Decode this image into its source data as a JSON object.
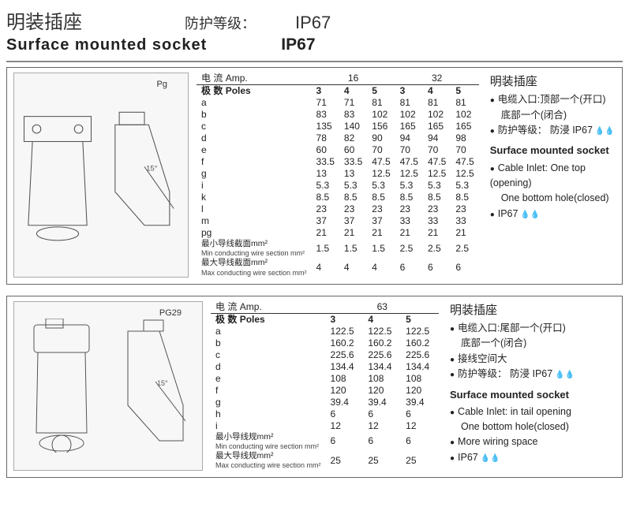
{
  "header": {
    "cnTitle": "明装插座",
    "cnProtectionLabel": "防护等级：",
    "cnIP": "IP67",
    "enTitle": "Surface mounted  socket",
    "enIP": "IP67"
  },
  "section1": {
    "ampLabelCn": "电 流",
    "ampLabelEn": "Amp.",
    "polesLabelCn": "极 数",
    "polesLabelEn": "Poles",
    "ampGroups": [
      "16",
      "32"
    ],
    "poles": [
      "3",
      "4",
      "5",
      "3",
      "4",
      "5"
    ],
    "rows": [
      {
        "l": "a",
        "v": [
          "71",
          "71",
          "81",
          "81",
          "81",
          "81"
        ]
      },
      {
        "l": "b",
        "v": [
          "83",
          "83",
          "102",
          "102",
          "102",
          "102"
        ]
      },
      {
        "l": "c",
        "v": [
          "135",
          "140",
          "156",
          "165",
          "165",
          "165"
        ]
      },
      {
        "l": "d",
        "v": [
          "78",
          "82",
          "90",
          "94",
          "94",
          "98"
        ]
      },
      {
        "l": "e",
        "v": [
          "60",
          "60",
          "70",
          "70",
          "70",
          "70"
        ]
      },
      {
        "l": "f",
        "v": [
          "33.5",
          "33.5",
          "47.5",
          "47.5",
          "47.5",
          "47.5"
        ]
      },
      {
        "l": "g",
        "v": [
          "13",
          "13",
          "12.5",
          "12.5",
          "12.5",
          "12.5"
        ]
      },
      {
        "l": "i",
        "v": [
          "5.3",
          "5.3",
          "5.3",
          "5.3",
          "5.3",
          "5.3"
        ]
      },
      {
        "l": "k",
        "v": [
          "8.5",
          "8.5",
          "8.5",
          "8.5",
          "8.5",
          "8.5"
        ]
      },
      {
        "l": "l",
        "v": [
          "23",
          "23",
          "23",
          "23",
          "23",
          "23"
        ]
      },
      {
        "l": "m",
        "v": [
          "37",
          "37",
          "37",
          "33",
          "33",
          "33"
        ]
      },
      {
        "l": "pg",
        "v": [
          "21",
          "21",
          "21",
          "21",
          "21",
          "21"
        ]
      }
    ],
    "minCn": "最小导线截面mm²",
    "minEn": "Min conducting wire section mm²",
    "minV": [
      "1.5",
      "1.5",
      "1.5",
      "2.5",
      "2.5",
      "2.5"
    ],
    "maxCn": "最大导线截面mm²",
    "maxEn": "Max conducting wire section mm²",
    "maxV": [
      "4",
      "4",
      "4",
      "6",
      "6",
      "6"
    ],
    "side": {
      "cnHeading": "明装插座",
      "cnLine1a": "电缆入口:顶部一个(开口)",
      "cnLine1b": "底部一个(闭合)",
      "cnLine2": "防护等级： 防浸 IP67",
      "enHeading": "Surface mounted socket",
      "enLine1a": "Cable Inlet: One top (opening)",
      "enLine1b": "One bottom hole(closed)",
      "enLine2": "IP67"
    },
    "diagramPg": "Pg",
    "diagramAngle": "15°"
  },
  "section2": {
    "ampLabelCn": "电 流",
    "ampLabelEn": "Amp.",
    "polesLabelCn": "极 数",
    "polesLabelEn": "Poles",
    "ampGroups": [
      "63"
    ],
    "poles": [
      "3",
      "4",
      "5"
    ],
    "rows": [
      {
        "l": "a",
        "v": [
          "122.5",
          "122.5",
          "122.5"
        ]
      },
      {
        "l": "b",
        "v": [
          "160.2",
          "160.2",
          "160.2"
        ]
      },
      {
        "l": "c",
        "v": [
          "225.6",
          "225.6",
          "225.6"
        ]
      },
      {
        "l": "d",
        "v": [
          "134.4",
          "134.4",
          "134.4"
        ]
      },
      {
        "l": "e",
        "v": [
          "108",
          "108",
          "108"
        ]
      },
      {
        "l": "f",
        "v": [
          "120",
          "120",
          "120"
        ]
      },
      {
        "l": "g",
        "v": [
          "39.4",
          "39.4",
          "39.4"
        ]
      },
      {
        "l": "h",
        "v": [
          "6",
          "6",
          "6"
        ]
      },
      {
        "l": "i",
        "v": [
          "12",
          "12",
          "12"
        ]
      }
    ],
    "minCn": "最小导线规mm²",
    "minEn": "Min conducting wire section mm²",
    "minV": [
      "6",
      "6",
      "6"
    ],
    "maxCn": "最大导线规mm²",
    "maxEn": "Max conducting wire section mm²",
    "maxV": [
      "25",
      "25",
      "25"
    ],
    "side": {
      "cnHeading": "明装插座",
      "cnLine1a": "电缆入口:尾部一个(开口)",
      "cnLine1b": "底部一个(闭合)",
      "cnLine2": "接线空间大",
      "cnLine3": "防护等级： 防浸 IP67",
      "enHeading": "Surface mounted socket",
      "enLine1a": "Cable Inlet: in tail opening",
      "enLine1b": "One bottom hole(closed)",
      "enLine2": "More wiring space",
      "enLine3": "IP67"
    },
    "diagramPg": "PG29",
    "diagramAngle": "15°"
  },
  "watermark": "www.e"
}
